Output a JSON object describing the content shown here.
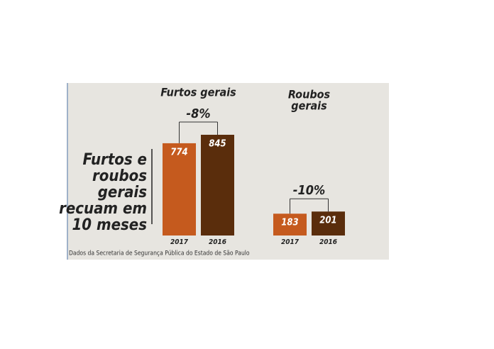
{
  "title": [
    "Furtos e",
    "roubos",
    "gerais",
    "recuam em",
    "10 meses"
  ],
  "source": "Dados da Secretaria de Segurança Pública do Estado de São Paulo",
  "chart_data": [
    {
      "type": "bar",
      "title": [
        "Furtos gerais"
      ],
      "categories": [
        "2017",
        "2016"
      ],
      "values": [
        774,
        845
      ],
      "colors": [
        "#c55a1e",
        "#5a2d0c"
      ],
      "annotation": "-8%"
    },
    {
      "type": "bar",
      "title": [
        "Roubos",
        "gerais"
      ],
      "categories": [
        "2017",
        "2016"
      ],
      "values": [
        183,
        201
      ],
      "colors": [
        "#c55a1e",
        "#5a2d0c"
      ],
      "annotation": "-10%"
    }
  ]
}
